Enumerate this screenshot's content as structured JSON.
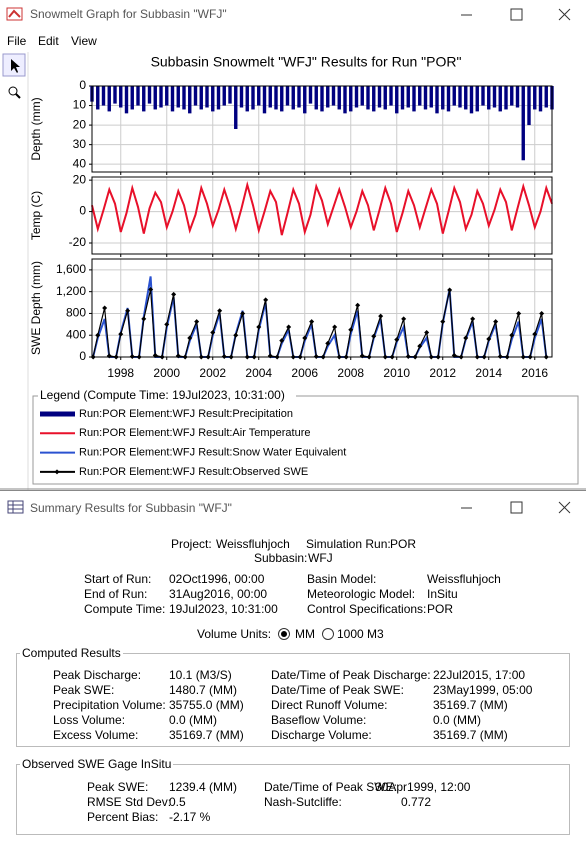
{
  "window_title": "Snowmelt Graph for Subbasin \"WFJ\"",
  "menu": [
    "File",
    "Edit",
    "View"
  ],
  "graph_title": "Subbasin Snowmelt \"WFJ\" Results for Run \"POR\"",
  "chart_data": [
    {
      "type": "bar",
      "ylabel": "Depth (mm)",
      "y_inverted": true,
      "grid": true,
      "xlim": [
        1996.75,
        2016.75
      ],
      "xticks": [
        1998,
        2000,
        2002,
        2004,
        2006,
        2008,
        2010,
        2012,
        2014,
        2016
      ],
      "ylim": [
        0,
        44
      ],
      "yticks": [
        0,
        10,
        20,
        30,
        40
      ],
      "x": [
        1996.75,
        1997,
        1997.25,
        1997.5,
        1997.75,
        1998,
        1998.25,
        1998.5,
        1998.75,
        1999,
        1999.25,
        1999.5,
        1999.75,
        2000,
        2000.25,
        2000.5,
        2000.75,
        2001,
        2001.25,
        2001.5,
        2001.75,
        2002,
        2002.25,
        2002.5,
        2002.75,
        2003,
        2003.25,
        2003.5,
        2003.75,
        2004,
        2004.25,
        2004.5,
        2004.75,
        2005,
        2005.25,
        2005.5,
        2005.75,
        2006,
        2006.25,
        2006.5,
        2006.75,
        2007,
        2007.25,
        2007.5,
        2007.75,
        2008,
        2008.25,
        2008.5,
        2008.75,
        2009,
        2009.25,
        2009.5,
        2009.75,
        2010,
        2010.25,
        2010.5,
        2010.75,
        2011,
        2011.25,
        2011.5,
        2011.75,
        2012,
        2012.25,
        2012.5,
        2012.75,
        2013,
        2013.25,
        2013.5,
        2013.75,
        2014,
        2014.25,
        2014.5,
        2014.75,
        2015,
        2015.25,
        2015.5,
        2015.75,
        2016,
        2016.25,
        2016.5,
        2016.75
      ],
      "series": [
        {
          "name": "Run:POR Element:WFJ Result:Precipitation",
          "color": "#000080",
          "values": [
            8,
            12,
            10,
            13,
            9,
            11,
            14,
            12,
            10,
            13,
            9,
            12,
            11,
            10,
            13,
            11,
            12,
            14,
            10,
            12,
            11,
            13,
            12,
            10,
            9,
            22,
            11,
            13,
            12,
            10,
            14,
            11,
            12,
            13,
            10,
            12,
            11,
            14,
            9,
            12,
            13,
            11,
            10,
            12,
            14,
            13,
            11,
            10,
            12,
            13,
            11,
            12,
            10,
            14,
            12,
            11,
            13,
            10,
            12,
            11,
            14,
            12,
            13,
            10,
            11,
            12,
            14,
            13,
            10,
            12,
            11,
            13,
            12,
            10,
            11,
            38,
            20,
            12,
            13,
            11,
            12
          ]
        }
      ]
    },
    {
      "type": "line",
      "ylabel": "Temp (C)",
      "grid": true,
      "xlim": [
        1996.75,
        2016.75
      ],
      "xticks": [
        1998,
        2000,
        2002,
        2004,
        2006,
        2008,
        2010,
        2012,
        2014,
        2016
      ],
      "ylim": [
        -27,
        22
      ],
      "yticks": [
        -20,
        0,
        20
      ],
      "x": [
        1996.75,
        1997,
        1997.25,
        1997.5,
        1997.75,
        1998,
        1998.25,
        1998.5,
        1998.75,
        1999,
        1999.25,
        1999.5,
        1999.75,
        2000,
        2000.25,
        2000.5,
        2000.75,
        2001,
        2001.25,
        2001.5,
        2001.75,
        2002,
        2002.25,
        2002.5,
        2002.75,
        2003,
        2003.25,
        2003.5,
        2003.75,
        2004,
        2004.25,
        2004.5,
        2004.75,
        2005,
        2005.25,
        2005.5,
        2005.75,
        2006,
        2006.25,
        2006.5,
        2006.75,
        2007,
        2007.25,
        2007.5,
        2007.75,
        2008,
        2008.25,
        2008.5,
        2008.75,
        2009,
        2009.25,
        2009.5,
        2009.75,
        2010,
        2010.25,
        2010.5,
        2010.75,
        2011,
        2011.25,
        2011.5,
        2011.75,
        2012,
        2012.25,
        2012.5,
        2012.75,
        2013,
        2013.25,
        2013.5,
        2013.75,
        2014,
        2014.25,
        2014.5,
        2014.75,
        2015,
        2015.25,
        2015.5,
        2015.75,
        2016,
        2016.25,
        2016.5,
        2016.75
      ],
      "series": [
        {
          "name": "Run:POR Element:WFJ Result:Air Temperature",
          "color": "#e8102a",
          "values": [
            4,
            -11,
            1,
            14,
            5,
            -13,
            -1,
            15,
            3,
            -14,
            2,
            12,
            6,
            -10,
            0,
            13,
            4,
            -12,
            -2,
            15,
            5,
            -9,
            1,
            14,
            3,
            -11,
            2,
            17,
            4,
            -12,
            0,
            13,
            6,
            -15,
            -1,
            14,
            5,
            -13,
            -2,
            16,
            7,
            -8,
            3,
            14,
            3,
            -10,
            0,
            13,
            4,
            -12,
            1,
            15,
            5,
            -13,
            -1,
            13,
            4,
            -10,
            2,
            14,
            5,
            -14,
            0,
            15,
            6,
            -11,
            -2,
            13,
            5,
            -9,
            1,
            14,
            6,
            -12,
            2,
            16,
            4,
            -10,
            0,
            15,
            5
          ]
        }
      ]
    },
    {
      "type": "line",
      "ylabel": "SWE Depth (mm)",
      "grid": true,
      "xlim": [
        1996.75,
        2016.75
      ],
      "xticks": [
        1998,
        2000,
        2002,
        2004,
        2006,
        2008,
        2010,
        2012,
        2014,
        2016
      ],
      "ylim": [
        0,
        1800
      ],
      "yticks": [
        0,
        400,
        800,
        {
          "value": 1200,
          "label": "1,200"
        },
        {
          "value": 1600,
          "label": "1,600"
        }
      ],
      "x": [
        1996.8,
        1997,
        1997.3,
        1997.5,
        1997.8,
        1998,
        1998.3,
        1998.5,
        1998.8,
        1999,
        1999.3,
        1999.5,
        1999.8,
        2000,
        2000.3,
        2000.5,
        2000.8,
        2001,
        2001.3,
        2001.5,
        2001.8,
        2002,
        2002.3,
        2002.5,
        2002.8,
        2003,
        2003.3,
        2003.5,
        2003.8,
        2004,
        2004.3,
        2004.5,
        2004.8,
        2005,
        2005.3,
        2005.5,
        2005.8,
        2006,
        2006.3,
        2006.5,
        2006.8,
        2007,
        2007.3,
        2007.5,
        2007.8,
        2008,
        2008.3,
        2008.5,
        2008.8,
        2009,
        2009.3,
        2009.5,
        2009.8,
        2010,
        2010.3,
        2010.5,
        2010.8,
        2011,
        2011.3,
        2011.5,
        2011.8,
        2012,
        2012.3,
        2012.5,
        2012.8,
        2013,
        2013.3,
        2013.5,
        2013.8,
        2014,
        2014.3,
        2014.5,
        2014.8,
        2015,
        2015.3,
        2015.5,
        2015.8,
        2016,
        2016.3,
        2016.5
      ],
      "series": [
        {
          "name": "Run:POR Element:WFJ Result:Snow Water Equivalent",
          "color": "#2a52d0",
          "values": [
            0,
            350,
            700,
            0,
            0,
            450,
            900,
            0,
            0,
            740,
            1480,
            0,
            0,
            550,
            1100,
            0,
            0,
            300,
            600,
            0,
            0,
            400,
            800,
            0,
            0,
            425,
            850,
            0,
            0,
            500,
            1000,
            0,
            0,
            250,
            500,
            0,
            0,
            300,
            600,
            0,
            0,
            200,
            400,
            0,
            0,
            425,
            850,
            0,
            0,
            350,
            700,
            0,
            0,
            275,
            550,
            0,
            0,
            175,
            350,
            0,
            0,
            625,
            1250,
            0,
            0,
            325,
            650,
            0,
            0,
            300,
            600,
            0,
            0,
            325,
            650,
            0,
            0,
            350,
            700,
            0
          ]
        },
        {
          "name": "Run:POR Element:WFJ Result:Observed SWE",
          "color": "#000000",
          "marker": true,
          "values": [
            0,
            400,
            900,
            20,
            0,
            420,
            850,
            10,
            0,
            700,
            1240,
            30,
            0,
            600,
            1150,
            20,
            0,
            350,
            650,
            0,
            0,
            450,
            850,
            10,
            0,
            400,
            800,
            0,
            0,
            550,
            1050,
            20,
            0,
            300,
            550,
            0,
            0,
            350,
            650,
            10,
            0,
            250,
            550,
            0,
            0,
            500,
            950,
            20,
            0,
            380,
            750,
            0,
            0,
            320,
            700,
            10,
            0,
            200,
            450,
            0,
            0,
            650,
            1230,
            30,
            0,
            350,
            700,
            0,
            0,
            330,
            650,
            10,
            0,
            400,
            800,
            0,
            0,
            420,
            800,
            0
          ]
        }
      ]
    }
  ],
  "legend_title": "Legend (Compute Time: 19Jul2023, 10:31:00)",
  "summary": {
    "window_title": "Summary Results for Subbasin \"WFJ\"",
    "header": [
      [
        "Project:",
        "Weissfluhjoch",
        "Simulation Run:",
        "POR"
      ],
      [
        "Subbasin:",
        "WFJ"
      ]
    ],
    "run_info": [
      [
        "Start of Run:",
        "02Oct1996, 00:00",
        "Basin Model:",
        "Weissfluhjoch"
      ],
      [
        "End of Run:",
        "31Aug2016, 00:00",
        "Meteorologic Model:",
        "InSitu"
      ],
      [
        "Compute Time:",
        "19Jul2023, 10:31:00",
        "Control Specifications:",
        "POR"
      ]
    ],
    "volume_units_label": "Volume Units:",
    "volume_units": [
      "MM",
      "1000 M3"
    ],
    "computed": {
      "title": "Computed Results",
      "rows": [
        [
          "Peak Discharge:",
          "10.1 (M3/S)",
          "Date/Time of Peak Discharge:",
          "22Jul2015, 17:00"
        ],
        [
          "Peak SWE:",
          "1480.7 (MM)",
          "Date/Time of Peak SWE:",
          "23May1999, 05:00"
        ],
        [
          "Precipitation Volume:",
          "35755.0 (MM)",
          "Direct Runoff Volume:",
          "35169.7 (MM)"
        ],
        [
          "Loss Volume:",
          "0.0 (MM)",
          "Baseflow Volume:",
          "0.0 (MM)"
        ],
        [
          "Excess Volume:",
          "35169.7 (MM)",
          "Discharge Volume:",
          "35169.7 (MM)"
        ]
      ]
    },
    "observed": {
      "title": "Observed SWE Gage InSitu",
      "rows": [
        [
          "Peak SWE:",
          "1239.4 (MM)",
          "Date/Time of Peak SWE:",
          "30Apr1999, 12:00"
        ],
        [
          "RMSE Std Dev:",
          "0.5",
          "Nash-Sutcliffe:",
          "0.772"
        ],
        [
          "Percent Bias:",
          "-2.17 %"
        ]
      ]
    }
  }
}
